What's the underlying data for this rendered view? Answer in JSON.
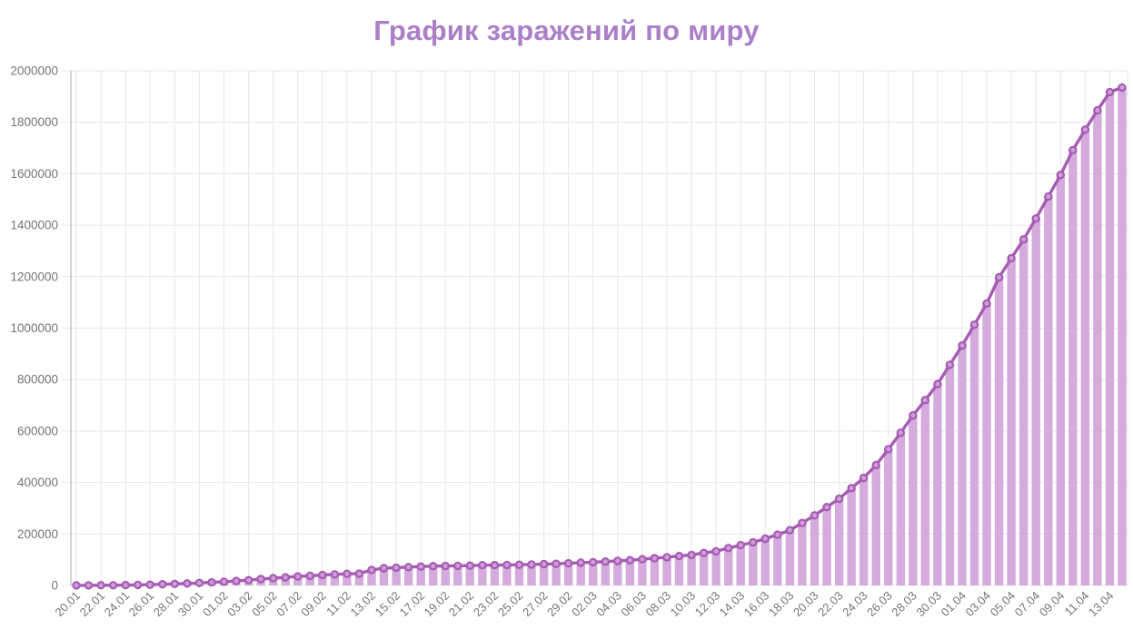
{
  "page": {
    "title": "График заражений по миру"
  },
  "colors": {
    "title": "#ab7fc8",
    "line": "#a55cb2",
    "marker_fill": "#cf9ed9",
    "bar_fill": "#d5aadd",
    "grid": "#e7e7e7",
    "axis": "#b3b3b3",
    "tick_text": "#757575",
    "background": "#ffffff"
  },
  "chart_data": {
    "type": "line",
    "title": "График заражений по миру",
    "xlabel": "",
    "ylabel": "",
    "ylim": [
      0,
      2000000
    ],
    "y_tick_step": 200000,
    "y_tick_labels": [
      "0",
      "200000",
      "400000",
      "600000",
      "800000",
      "1000000",
      "1200000",
      "1400000",
      "1600000",
      "1800000",
      "2000000"
    ],
    "x_tick_interval": 2,
    "grid": true,
    "legend_position": "none",
    "style": {
      "markers": "open-circle",
      "area_bars": true,
      "x_label_rotation_deg": -45
    },
    "x": [
      "20.01",
      "21.01",
      "22.01",
      "23.01",
      "24.01",
      "25.01",
      "26.01",
      "27.01",
      "28.01",
      "29.01",
      "30.01",
      "31.01",
      "01.02",
      "02.02",
      "03.02",
      "04.02",
      "05.02",
      "06.02",
      "07.02",
      "08.02",
      "09.02",
      "10.02",
      "11.02",
      "12.02",
      "13.02",
      "14.02",
      "15.02",
      "16.02",
      "17.02",
      "18.02",
      "19.02",
      "20.02",
      "21.02",
      "22.02",
      "23.02",
      "24.02",
      "25.02",
      "26.02",
      "27.02",
      "28.02",
      "29.02",
      "01.03",
      "02.03",
      "03.03",
      "04.03",
      "05.03",
      "06.03",
      "07.03",
      "08.03",
      "09.03",
      "10.03",
      "11.03",
      "12.03",
      "13.03",
      "14.03",
      "15.03",
      "16.03",
      "17.03",
      "18.03",
      "19.03",
      "20.03",
      "21.03",
      "22.03",
      "23.03",
      "24.03",
      "25.03",
      "26.03",
      "27.03",
      "28.03",
      "29.03",
      "30.03",
      "31.03",
      "01.04",
      "02.04",
      "03.04",
      "04.04",
      "05.04",
      "06.04",
      "07.04",
      "08.04",
      "09.04",
      "10.04",
      "11.04",
      "12.04",
      "13.04",
      "14.04"
    ],
    "values": [
      282,
      314,
      581,
      846,
      1320,
      2014,
      2798,
      4593,
      6065,
      7818,
      9826,
      11953,
      14557,
      17391,
      20630,
      24554,
      28276,
      31481,
      34886,
      37558,
      40554,
      43103,
      45171,
      45683,
      60328,
      66887,
      69030,
      71224,
      73260,
      75138,
      75641,
      76199,
      76823,
      78599,
      78985,
      79590,
      80422,
      81397,
      82756,
      84124,
      86026,
      88372,
      90309,
      92844,
      95124,
      97886,
      101796,
      105836,
      109835,
      114212,
      118628,
      126214,
      132758,
      145416,
      156475,
      167506,
      181546,
      197168,
      214910,
      242713,
      272167,
      304528,
      336955,
      378235,
      418045,
      467655,
      529595,
      593295,
      660695,
      720140,
      782395,
      857490,
      932605,
      1013465,
      1095915,
      1197405,
      1272115,
      1345100,
      1426095,
      1511105,
      1595350,
      1691720,
      1771515,
      1846680,
      1917320,
      1935000
    ]
  }
}
